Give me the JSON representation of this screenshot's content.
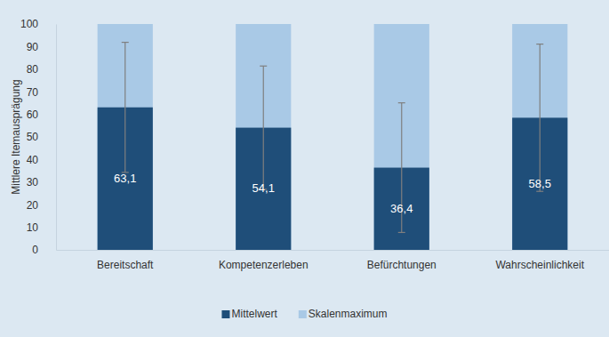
{
  "chart_data": {
    "type": "bar",
    "y_label": "Mittlere Itemausprägung",
    "categories": [
      "Bereitschaft",
      "Kompetenzerleben",
      "Befürchtungen",
      "Wahrscheinlichkeit"
    ],
    "series": [
      {
        "name": "Mittelwert",
        "color": "#1f4e79",
        "values": [
          63.1,
          54.1,
          36.4,
          58.5
        ],
        "value_labels": [
          "63,1",
          "54,1",
          "36,4",
          "58,5"
        ],
        "errors": [
          28.8,
          27.3,
          28.7,
          32.6
        ]
      },
      {
        "name": "Skalenmaximum",
        "color": "#a9c9e6",
        "values": [
          100,
          100,
          100,
          100
        ]
      }
    ],
    "stacked": false,
    "data_labels": true,
    "legend": "bottom",
    "grid": false,
    "ylim": [
      0,
      100
    ],
    "yticks": [
      0,
      10,
      20,
      30,
      40,
      50,
      60,
      70,
      80,
      90,
      100
    ]
  }
}
